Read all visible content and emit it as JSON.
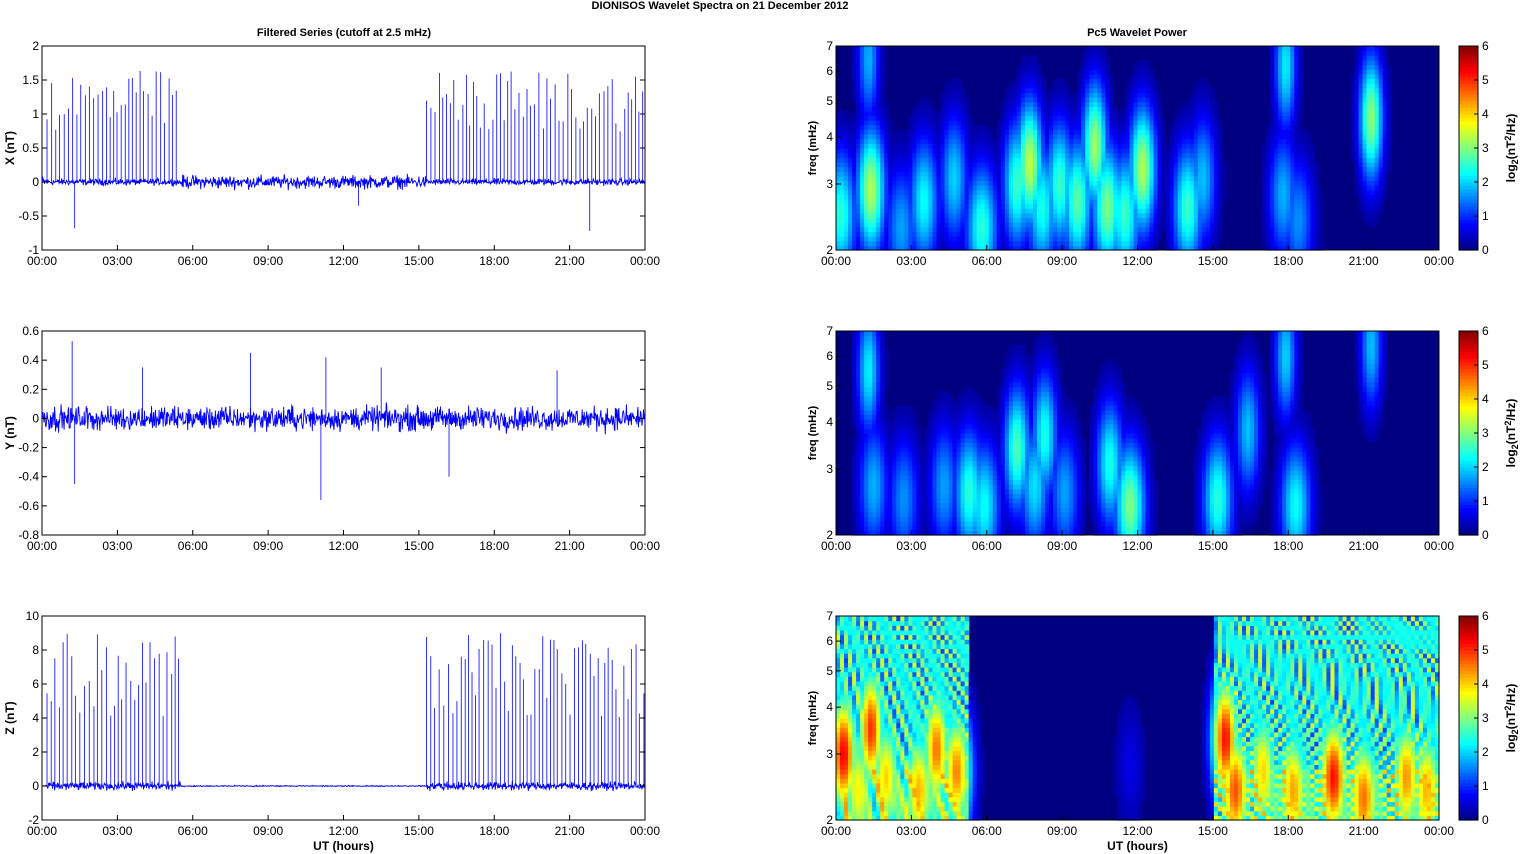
{
  "figure": {
    "title": "DIONISOS Wavelet Spectra on 21 December  2012",
    "left_title": "Filtered Series (cutoff at 2.5 mHz)",
    "right_title": "Pc5 Wavelet Power",
    "xlabel": "UT (hours)",
    "x_ticks": [
      "00:00",
      "03:00",
      "06:00",
      "09:00",
      "12:00",
      "15:00",
      "18:00",
      "21:00",
      "00:00"
    ],
    "colors": {
      "trace": "#0000ff",
      "axis": "#000000",
      "background": "#ffffff"
    }
  },
  "chart_data": [
    {
      "type": "line",
      "name": "X-series",
      "ylabel": "X (nT)",
      "xlim": [
        0,
        24
      ],
      "ylim": [
        -1,
        2
      ],
      "y_ticks": [
        "-1",
        "-0.5",
        "0",
        "0.5",
        "1",
        "1.5",
        "2"
      ],
      "noise_amp": 0.07,
      "spike_windows": [
        [
          0.2,
          5.5
        ],
        [
          15.3,
          24
        ]
      ],
      "spike_max": 1.65,
      "quiet_noise_amp": 0.14,
      "grid": false
    },
    {
      "type": "line",
      "name": "Y-series",
      "ylabel": "Y (nT)",
      "xlim": [
        0,
        24
      ],
      "ylim": [
        -0.8,
        0.6
      ],
      "y_ticks": [
        "-0.8",
        "-0.6",
        "-0.4",
        "-0.2",
        "0",
        "0.2",
        "0.4",
        "0.6"
      ],
      "noise_amp": 0.12,
      "spike_windows": [],
      "spike_max": 0.5,
      "quiet_noise_amp": 0.12,
      "grid": false
    },
    {
      "type": "line",
      "name": "Z-series",
      "ylabel": "Z (nT)",
      "xlim": [
        0,
        24
      ],
      "ylim": [
        -2,
        10
      ],
      "y_ticks": [
        "-2",
        "0",
        "2",
        "4",
        "6",
        "8",
        "10"
      ],
      "noise_amp": 0.35,
      "spike_windows": [
        [
          0.2,
          5.5
        ],
        [
          15.3,
          24
        ]
      ],
      "spike_max": 9.0,
      "quiet_noise_amp": 0.05,
      "grid": false
    },
    {
      "type": "heatmap",
      "name": "X-power",
      "ylabel": "freq (mHz)",
      "xlim": [
        0,
        24
      ],
      "ylim": [
        2,
        7
      ],
      "y_scale": "log",
      "y_ticks": [
        "2",
        "3",
        "4",
        "5",
        "6",
        "7"
      ],
      "colorbar": {
        "label": "log2(nT2/Hz)",
        "ticks": [
          "0",
          "1",
          "2",
          "3",
          "4",
          "5",
          "6"
        ],
        "range": [
          0,
          6
        ],
        "colormap": "jet"
      },
      "blobs": [
        {
          "t": 0.2,
          "f": 2.5,
          "p": 2.5
        },
        {
          "t": 1.4,
          "f": 2.9,
          "p": 3.3
        },
        {
          "t": 2.6,
          "f": 2.3,
          "p": 1.7
        },
        {
          "t": 3.5,
          "f": 2.7,
          "p": 2.3
        },
        {
          "t": 4.7,
          "f": 3.1,
          "p": 2.0
        },
        {
          "t": 5.8,
          "f": 2.3,
          "p": 2.5
        },
        {
          "t": 7.2,
          "f": 3.0,
          "p": 2.6
        },
        {
          "t": 7.7,
          "f": 3.4,
          "p": 3.4
        },
        {
          "t": 8.2,
          "f": 2.6,
          "p": 2.4
        },
        {
          "t": 8.9,
          "f": 3.0,
          "p": 2.6
        },
        {
          "t": 9.6,
          "f": 2.7,
          "p": 2.8
        },
        {
          "t": 10.3,
          "f": 3.8,
          "p": 3.2
        },
        {
          "t": 10.8,
          "f": 2.6,
          "p": 3.0
        },
        {
          "t": 11.5,
          "f": 2.5,
          "p": 2.6
        },
        {
          "t": 12.2,
          "f": 3.3,
          "p": 3.3
        },
        {
          "t": 14.0,
          "f": 2.6,
          "p": 2.6
        },
        {
          "t": 14.6,
          "f": 3.1,
          "p": 1.9
        },
        {
          "t": 17.8,
          "f": 2.8,
          "p": 1.8
        },
        {
          "t": 18.4,
          "f": 2.4,
          "p": 1.6
        },
        {
          "t": 21.3,
          "f": 4.5,
          "p": 3.1
        },
        {
          "t": 17.9,
          "f": 6.2,
          "p": 2.2
        },
        {
          "t": 1.3,
          "f": 6.5,
          "p": 1.8
        }
      ]
    },
    {
      "type": "heatmap",
      "name": "Y-power",
      "ylabel": "freq (mHz)",
      "xlim": [
        0,
        24
      ],
      "ylim": [
        2,
        7
      ],
      "y_scale": "log",
      "y_ticks": [
        "2",
        "3",
        "4",
        "5",
        "6",
        "7"
      ],
      "colorbar": {
        "label": "log2(nT2/Hz)",
        "ticks": [
          "0",
          "1",
          "2",
          "3",
          "4",
          "5",
          "6"
        ],
        "range": [
          0,
          6
        ],
        "colormap": "jet"
      },
      "blobs": [
        {
          "t": 1.3,
          "f": 5.5,
          "p": 2.2
        },
        {
          "t": 1.5,
          "f": 2.7,
          "p": 1.8
        },
        {
          "t": 2.7,
          "f": 2.5,
          "p": 1.6
        },
        {
          "t": 4.3,
          "f": 2.7,
          "p": 1.7
        },
        {
          "t": 5.3,
          "f": 2.6,
          "p": 2.5
        },
        {
          "t": 5.9,
          "f": 2.4,
          "p": 2.3
        },
        {
          "t": 7.2,
          "f": 3.4,
          "p": 2.7
        },
        {
          "t": 7.9,
          "f": 2.7,
          "p": 2.1
        },
        {
          "t": 8.3,
          "f": 3.7,
          "p": 2.4
        },
        {
          "t": 9.1,
          "f": 2.6,
          "p": 1.7
        },
        {
          "t": 10.9,
          "f": 3.1,
          "p": 2.4
        },
        {
          "t": 11.7,
          "f": 2.4,
          "p": 3.0
        },
        {
          "t": 15.2,
          "f": 2.5,
          "p": 2.5
        },
        {
          "t": 16.4,
          "f": 3.8,
          "p": 1.9
        },
        {
          "t": 18.3,
          "f": 2.4,
          "p": 2.3
        },
        {
          "t": 17.9,
          "f": 6.0,
          "p": 2.0
        },
        {
          "t": 21.3,
          "f": 6.4,
          "p": 1.9
        }
      ]
    },
    {
      "type": "heatmap",
      "name": "Z-power",
      "ylabel": "freq (mHz)",
      "xlim": [
        0,
        24
      ],
      "ylim": [
        2,
        7
      ],
      "y_scale": "log",
      "y_ticks": [
        "2",
        "3",
        "4",
        "5",
        "6",
        "7"
      ],
      "colorbar": {
        "label": "log2(nT2/Hz)",
        "ticks": [
          "0",
          "1",
          "2",
          "3",
          "4",
          "5",
          "6"
        ],
        "range": [
          0,
          6
        ],
        "colormap": "jet"
      },
      "active_windows": [
        [
          0,
          5.2
        ],
        [
          15.0,
          24
        ]
      ],
      "active_level": 3.6,
      "blobs": [
        {
          "t": 0.3,
          "f": 3.0,
          "p": 5.3
        },
        {
          "t": 0.9,
          "f": 2.4,
          "p": 3.8
        },
        {
          "t": 1.4,
          "f": 3.5,
          "p": 5.0
        },
        {
          "t": 2.0,
          "f": 2.6,
          "p": 4.0
        },
        {
          "t": 3.3,
          "f": 2.4,
          "p": 4.2
        },
        {
          "t": 4.0,
          "f": 3.1,
          "p": 4.6
        },
        {
          "t": 4.8,
          "f": 2.7,
          "p": 4.5
        },
        {
          "t": 15.5,
          "f": 3.3,
          "p": 5.2
        },
        {
          "t": 15.9,
          "f": 2.4,
          "p": 4.8
        },
        {
          "t": 17.0,
          "f": 2.7,
          "p": 4.0
        },
        {
          "t": 18.2,
          "f": 2.4,
          "p": 4.3
        },
        {
          "t": 19.8,
          "f": 2.6,
          "p": 5.2
        },
        {
          "t": 21.0,
          "f": 2.3,
          "p": 4.6
        },
        {
          "t": 22.7,
          "f": 2.6,
          "p": 4.4
        },
        {
          "t": 23.5,
          "f": 2.4,
          "p": 4.2
        },
        {
          "t": 11.7,
          "f": 2.8,
          "p": 0.6
        }
      ]
    }
  ]
}
